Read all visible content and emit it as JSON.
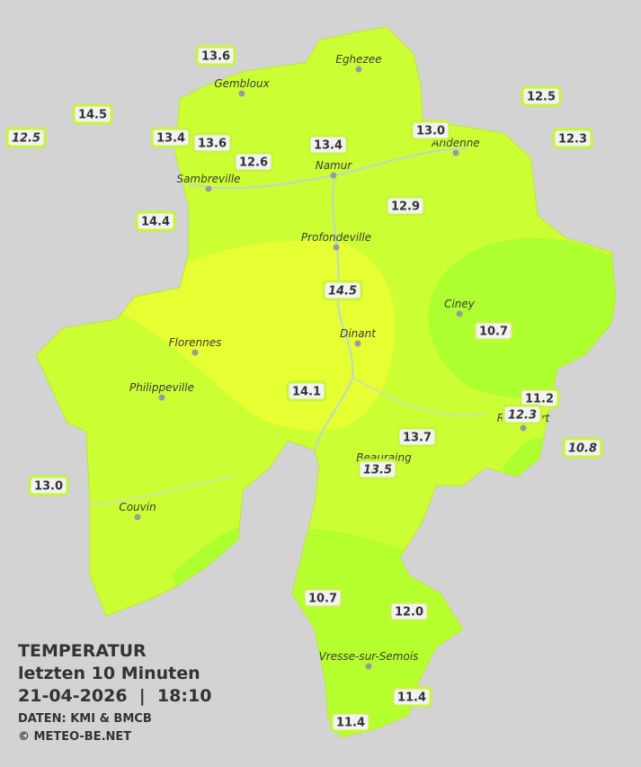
{
  "legend": {
    "title": "TEMPERATUR",
    "period": "letzten 10 Minuten",
    "datetime": "21-04-2026  |  18:10",
    "source": "DATEN: KMI & BMCB",
    "copyright": "© METEO-BE.NET"
  },
  "towns": [
    "Eghezee",
    "Gembloux",
    "Andenne",
    "Namur",
    "Sambreville",
    "Profondeville",
    "Ciney",
    "Florennes",
    "Dinant",
    "Philippeville",
    "Rochefort",
    "Beauraing",
    "Couvin",
    "Vresse-sur-Semois"
  ],
  "stations": [
    {
      "label": "13.6"
    },
    {
      "label": "14.5"
    },
    {
      "label": "12.5",
      "italic": true
    },
    {
      "label": "13.4"
    },
    {
      "label": "13.6"
    },
    {
      "label": "12.6"
    },
    {
      "label": "13.4"
    },
    {
      "label": "13.0"
    },
    {
      "label": "12.5"
    },
    {
      "label": "12.3"
    },
    {
      "label": "14.4"
    },
    {
      "label": "12.9"
    },
    {
      "label": "14.5",
      "italic": true
    },
    {
      "label": "10.7"
    },
    {
      "label": "14.1"
    },
    {
      "label": "11.2"
    },
    {
      "label": "12.3",
      "italic": true
    },
    {
      "label": "10.8",
      "italic": true
    },
    {
      "label": "13.7"
    },
    {
      "label": "13.5",
      "italic": true
    },
    {
      "label": "13.0"
    },
    {
      "label": "10.7"
    },
    {
      "label": "12.0"
    },
    {
      "label": "11.4"
    },
    {
      "label": "11.4"
    }
  ]
}
